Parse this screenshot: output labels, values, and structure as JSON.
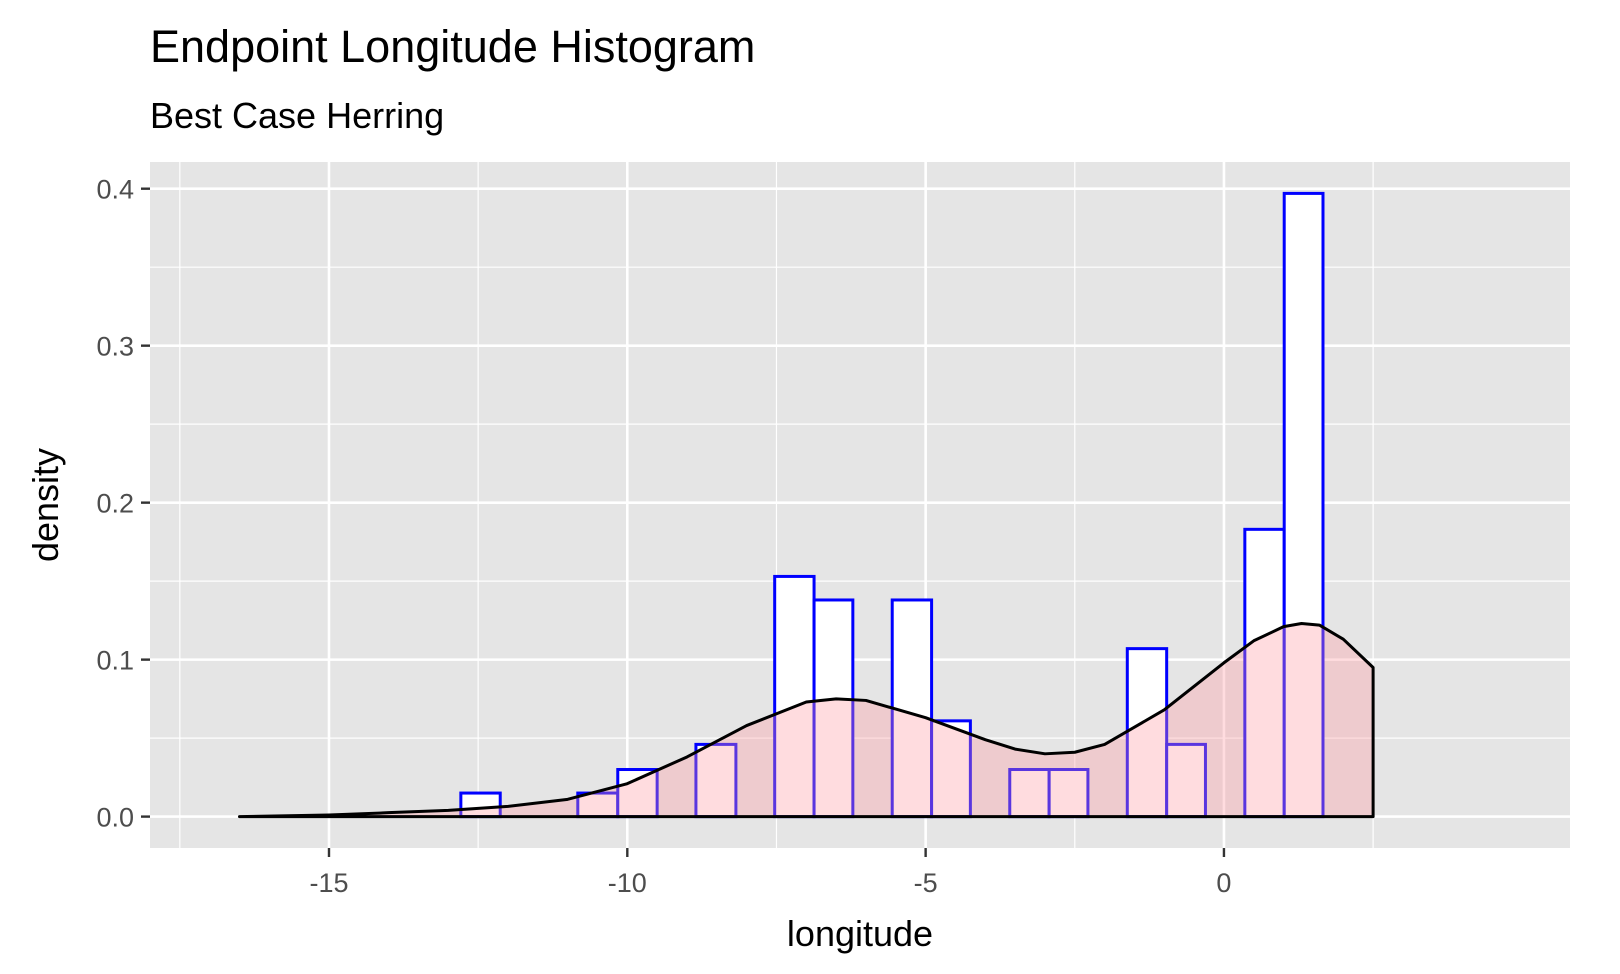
{
  "chart_data": {
    "type": "bar",
    "title": "Endpoint Longitude Histogram",
    "subtitle": "Best Case Herring",
    "xlabel": "longitude",
    "ylabel": "density",
    "xlim": [
      -18.0,
      5.8
    ],
    "ylim": [
      -0.02,
      0.417
    ],
    "x_ticks": [
      -15,
      -10,
      -5,
      0
    ],
    "x_tick_labels": [
      "-15",
      "-10",
      "-5",
      "0"
    ],
    "y_ticks": [
      0.0,
      0.1,
      0.2,
      0.3,
      0.4
    ],
    "y_tick_labels": [
      "0.0",
      "0.1",
      "0.2",
      "0.3",
      "0.4"
    ],
    "grid": true,
    "panel_background": "#e5e5e5",
    "histogram": {
      "series_name": "",
      "fill": "#ffffff",
      "outline": "#0000ff",
      "bins": [
        {
          "x0": -12.79,
          "x1": -12.13,
          "density": 0.015
        },
        {
          "x0": -10.83,
          "x1": -10.16,
          "density": 0.015
        },
        {
          "x0": -10.16,
          "x1": -9.5,
          "density": 0.03
        },
        {
          "x0": -8.85,
          "x1": -8.18,
          "density": 0.046
        },
        {
          "x0": -7.53,
          "x1": -6.87,
          "density": 0.153
        },
        {
          "x0": -6.87,
          "x1": -6.22,
          "density": 0.138
        },
        {
          "x0": -5.56,
          "x1": -4.9,
          "density": 0.138
        },
        {
          "x0": -4.9,
          "x1": -4.25,
          "density": 0.061
        },
        {
          "x0": -3.59,
          "x1": -2.93,
          "density": 0.03
        },
        {
          "x0": -2.93,
          "x1": -2.28,
          "density": 0.03
        },
        {
          "x0": -1.62,
          "x1": -0.96,
          "density": 0.107
        },
        {
          "x0": -0.96,
          "x1": -0.31,
          "density": 0.046
        },
        {
          "x0": 0.35,
          "x1": 1.01,
          "density": 0.183
        },
        {
          "x0": 1.01,
          "x1": 1.66,
          "density": 0.397
        }
      ]
    },
    "density_curve": {
      "series_name": "",
      "fill": "#ff9aa2",
      "fill_opacity": 0.35,
      "stroke": "#000000",
      "x": [
        -16.5,
        -15.0,
        -14.0,
        -13.0,
        -12.0,
        -11.0,
        -10.0,
        -9.0,
        -8.0,
        -7.0,
        -6.5,
        -6.0,
        -5.0,
        -4.0,
        -3.5,
        -3.0,
        -2.5,
        -2.0,
        -1.0,
        0.0,
        0.5,
        1.0,
        1.3,
        1.6,
        2.0,
        2.5
      ],
      "y": [
        0.0,
        0.001,
        0.0025,
        0.004,
        0.0065,
        0.011,
        0.021,
        0.038,
        0.058,
        0.073,
        0.075,
        0.074,
        0.063,
        0.049,
        0.043,
        0.04,
        0.041,
        0.046,
        0.068,
        0.098,
        0.112,
        0.121,
        0.123,
        0.122,
        0.113,
        0.095
      ]
    }
  }
}
